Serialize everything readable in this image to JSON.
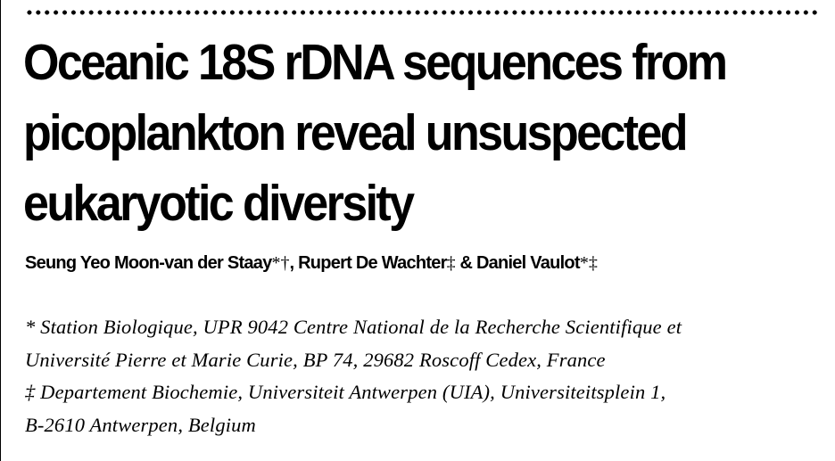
{
  "article": {
    "title_lines": [
      "Oceanic 18S rDNA sequences from",
      "picoplankton reveal unsuspected",
      "eukaryotic diversity"
    ],
    "authors": {
      "author1": "Seung Yeo Moon-van der Staay",
      "author1_marks": "*†",
      "sep1": ", ",
      "author2": "Rupert De Wachter",
      "author2_marks": "‡",
      "sep2": " & ",
      "author3": "Daniel Vaulot",
      "author3_marks": "*‡"
    },
    "affiliation_lines": [
      "* Station Biologique, UPR 9042 Centre National de la Recherche Scientifique et",
      "Université Pierre et Marie Curie, BP 74, 29682 Roscoff Cedex, France",
      "‡ Departement Biochemie, Universiteit Antwerpen (UIA), Universiteitsplein 1,",
      "B-2610 Antwerpen, Belgium"
    ]
  }
}
